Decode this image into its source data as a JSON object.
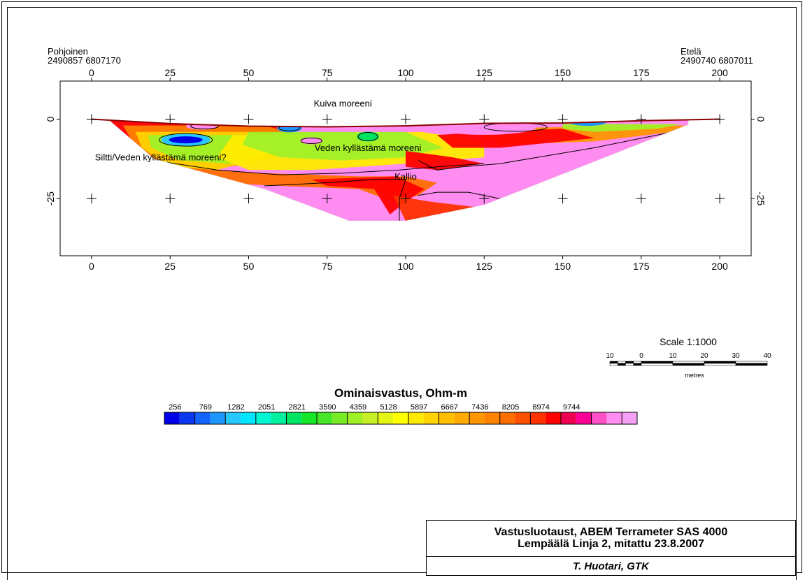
{
  "header": {
    "north_label": "Pohjoinen",
    "north_coords": "2490857 6807170",
    "south_label": "Etelä",
    "south_coords": "2490740 6807011"
  },
  "chart_data": {
    "type": "heatmap",
    "description_kind": "resistivity cross-section (contour plot)",
    "x_ticks": [
      0,
      25,
      50,
      75,
      100,
      125,
      150,
      175,
      200
    ],
    "y_ticks": [
      0,
      -25
    ],
    "xlim": [
      -10,
      210
    ],
    "ylim": [
      -43,
      12
    ],
    "grid": "cross markers at tick intersections",
    "annotations": [
      {
        "text": "Kuiva moreeni",
        "x": 80,
        "y": 4
      },
      {
        "text": "Veden kyllästämä moreeni",
        "x": 88,
        "y": -10
      },
      {
        "text": "Siltti/Veden kyllästämä moreeni?",
        "x": 22,
        "y": -13
      },
      {
        "text": "Kallio",
        "x": 100,
        "y": -19
      }
    ],
    "surface_profile": [
      [
        0,
        0
      ],
      [
        25,
        -1.4
      ],
      [
        50,
        -2.2
      ],
      [
        75,
        -2.4
      ],
      [
        100,
        -2.1
      ],
      [
        125,
        -1.3
      ],
      [
        150,
        -1.2
      ],
      [
        175,
        -0.5
      ],
      [
        200,
        0
      ]
    ],
    "section_outline": [
      [
        6,
        -0.7
      ],
      [
        20,
        -12.5
      ],
      [
        55,
        -22
      ],
      [
        82,
        -32
      ],
      [
        100,
        -32
      ],
      [
        125,
        -27
      ],
      [
        190,
        -1.7
      ]
    ]
  },
  "scale": {
    "title": "Scale 1:1000",
    "tick_labels": [
      "10",
      "0",
      "10",
      "20",
      "30",
      "40"
    ],
    "unit": "metres"
  },
  "legend": {
    "title": "Ominaisvastus, Ohm-m",
    "labels": [
      "256",
      "769",
      "1282",
      "2051",
      "2821",
      "3590",
      "4359",
      "5128",
      "5897",
      "6667",
      "7436",
      "8205",
      "8974",
      "9744"
    ],
    "colors": [
      "#0000e6",
      "#0a37f0",
      "#1464ff",
      "#1e96ff",
      "#28c8ff",
      "#00e6ff",
      "#00f5d2",
      "#00f0a0",
      "#00e664",
      "#14e628",
      "#46e628",
      "#78eb28",
      "#a0f028",
      "#c8f028",
      "#e6f514",
      "#ffff00",
      "#ffeb00",
      "#ffd200",
      "#ffbe00",
      "#ffaa00",
      "#ff9600",
      "#ff8200",
      "#ff6e00",
      "#ff5000",
      "#ff3200",
      "#ff0000",
      "#f00050",
      "#ff0096",
      "#ff50c8",
      "#ff8cf0",
      "#f5a0f5"
    ]
  },
  "title_block": {
    "line1": "Vastusluotaust, ABEM Terrameter SAS 4000",
    "line2": "Lempäälä Linja 2, mitattu 23.8.2007",
    "author": "T. Huotari, GTK"
  }
}
